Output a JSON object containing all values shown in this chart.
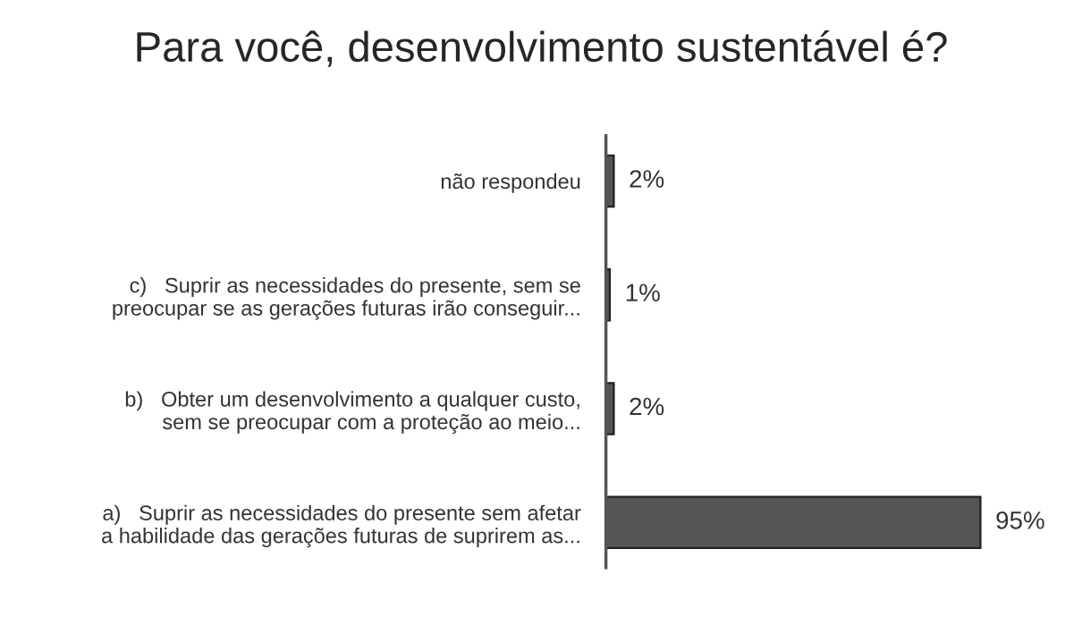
{
  "chart_data": {
    "type": "bar",
    "orientation": "horizontal",
    "title": "Para você, desenvolvimento sustentável é?",
    "categories": [
      "não respondeu",
      "c)   Suprir as necessidades do presente, sem se\npreocupar se as gerações futuras irão conseguir...",
      "b)   Obter um desenvolvimento a qualquer custo,\nsem se preocupar com a proteção ao meio...",
      "a)   Suprir as necessidades do presente sem afetar\na habilidade das gerações futuras de suprirem as..."
    ],
    "values": [
      2,
      1,
      2,
      95
    ],
    "color": "#555555",
    "value_labels": [
      "2%",
      "1%",
      "2%",
      "95%"
    ],
    "tick_labels": "y",
    "grid": false,
    "legend": false
  }
}
